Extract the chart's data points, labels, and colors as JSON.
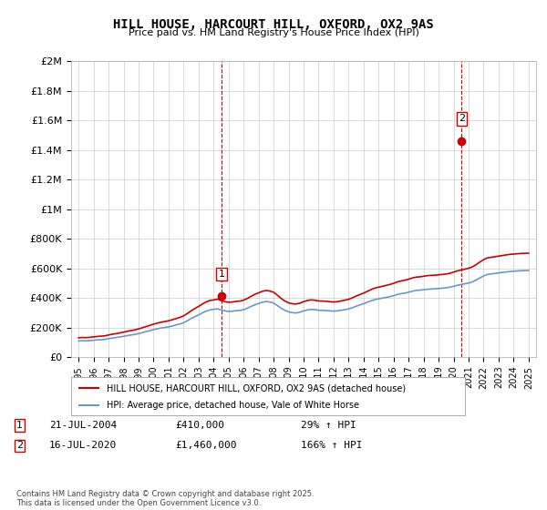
{
  "title": "HILL HOUSE, HARCOURT HILL, OXFORD, OX2 9AS",
  "subtitle": "Price paid vs. HM Land Registry's House Price Index (HPI)",
  "xlim": [
    1994.5,
    2025.5
  ],
  "ylim": [
    0,
    2000000
  ],
  "yticks": [
    0,
    200000,
    400000,
    600000,
    800000,
    1000000,
    1200000,
    1400000,
    1600000,
    1800000,
    2000000
  ],
  "ytick_labels": [
    "£0",
    "£200K",
    "£400K",
    "£600K",
    "£800K",
    "£1M",
    "£1.2M",
    "£1.4M",
    "£1.6M",
    "£1.8M",
    "£2M"
  ],
  "xticks": [
    1995,
    1996,
    1997,
    1998,
    1999,
    2000,
    2001,
    2002,
    2003,
    2004,
    2005,
    2006,
    2007,
    2008,
    2009,
    2010,
    2011,
    2012,
    2013,
    2014,
    2015,
    2016,
    2017,
    2018,
    2019,
    2020,
    2021,
    2022,
    2023,
    2024,
    2025
  ],
  "sale1_x": 2004.54,
  "sale1_y": 410000,
  "sale1_label": "1",
  "sale2_x": 2020.54,
  "sale2_y": 1460000,
  "sale2_label": "2",
  "sale_color": "#cc0000",
  "hpi_color": "#6699cc",
  "vline_color": "#cc0000",
  "background_color": "#ffffff",
  "grid_color": "#cccccc",
  "legend_house": "HILL HOUSE, HARCOURT HILL, OXFORD, OX2 9AS (detached house)",
  "legend_hpi": "HPI: Average price, detached house, Vale of White Horse",
  "annotation1": "1    21-JUL-2004    £410,000    29% ↑ HPI",
  "annotation2": "2    16-JUL-2020    £1,460,000    166% ↑ HPI",
  "footer": "Contains HM Land Registry data © Crown copyright and database right 2025.\nThis data is licensed under the Open Government Licence v3.0.",
  "hpi_data_x": [
    1995.0,
    1995.25,
    1995.5,
    1995.75,
    1996.0,
    1996.25,
    1996.5,
    1996.75,
    1997.0,
    1997.25,
    1997.5,
    1997.75,
    1998.0,
    1998.25,
    1998.5,
    1998.75,
    1999.0,
    1999.25,
    1999.5,
    1999.75,
    2000.0,
    2000.25,
    2000.5,
    2000.75,
    2001.0,
    2001.25,
    2001.5,
    2001.75,
    2002.0,
    2002.25,
    2002.5,
    2002.75,
    2003.0,
    2003.25,
    2003.5,
    2003.75,
    2004.0,
    2004.25,
    2004.5,
    2004.75,
    2005.0,
    2005.25,
    2005.5,
    2005.75,
    2006.0,
    2006.25,
    2006.5,
    2006.75,
    2007.0,
    2007.25,
    2007.5,
    2007.75,
    2008.0,
    2008.25,
    2008.5,
    2008.75,
    2009.0,
    2009.25,
    2009.5,
    2009.75,
    2010.0,
    2010.25,
    2010.5,
    2010.75,
    2011.0,
    2011.25,
    2011.5,
    2011.75,
    2012.0,
    2012.25,
    2012.5,
    2012.75,
    2013.0,
    2013.25,
    2013.5,
    2013.75,
    2014.0,
    2014.25,
    2014.5,
    2014.75,
    2015.0,
    2015.25,
    2015.5,
    2015.75,
    2016.0,
    2016.25,
    2016.5,
    2016.75,
    2017.0,
    2017.25,
    2017.5,
    2017.75,
    2018.0,
    2018.25,
    2018.5,
    2018.75,
    2019.0,
    2019.25,
    2019.5,
    2019.75,
    2020.0,
    2020.25,
    2020.5,
    2020.75,
    2021.0,
    2021.25,
    2021.5,
    2021.75,
    2022.0,
    2022.25,
    2022.5,
    2022.75,
    2023.0,
    2023.25,
    2023.5,
    2023.75,
    2024.0,
    2024.25,
    2024.5,
    2024.75,
    2025.0
  ],
  "hpi_data_y": [
    108000,
    110000,
    109000,
    111000,
    113000,
    116000,
    117000,
    119000,
    124000,
    128000,
    132000,
    136000,
    140000,
    145000,
    149000,
    153000,
    158000,
    165000,
    172000,
    178000,
    185000,
    191000,
    196000,
    200000,
    204000,
    210000,
    217000,
    223000,
    232000,
    245000,
    260000,
    273000,
    285000,
    298000,
    310000,
    318000,
    322000,
    326000,
    318000,
    312000,
    308000,
    310000,
    313000,
    315000,
    320000,
    330000,
    342000,
    353000,
    362000,
    370000,
    375000,
    372000,
    365000,
    348000,
    330000,
    316000,
    305000,
    300000,
    298000,
    303000,
    312000,
    318000,
    322000,
    320000,
    316000,
    315000,
    314000,
    312000,
    310000,
    312000,
    316000,
    320000,
    325000,
    333000,
    343000,
    352000,
    360000,
    370000,
    380000,
    388000,
    393000,
    398000,
    403000,
    408000,
    415000,
    423000,
    428000,
    432000,
    438000,
    445000,
    450000,
    452000,
    455000,
    458000,
    460000,
    461000,
    463000,
    465000,
    468000,
    472000,
    478000,
    485000,
    490000,
    495000,
    500000,
    508000,
    520000,
    535000,
    548000,
    558000,
    562000,
    565000,
    568000,
    572000,
    575000,
    578000,
    580000,
    582000,
    583000,
    584000,
    585000
  ],
  "house_data_x": [
    1995.0,
    1995.25,
    1995.5,
    1995.75,
    1996.0,
    1996.25,
    1996.5,
    1996.75,
    1997.0,
    1997.25,
    1997.5,
    1997.75,
    1998.0,
    1998.25,
    1998.5,
    1998.75,
    1999.0,
    1999.25,
    1999.5,
    1999.75,
    2000.0,
    2000.25,
    2000.5,
    2000.75,
    2001.0,
    2001.25,
    2001.5,
    2001.75,
    2002.0,
    2002.25,
    2002.5,
    2002.75,
    2003.0,
    2003.25,
    2003.5,
    2003.75,
    2004.0,
    2004.25,
    2004.5,
    2004.75,
    2005.0,
    2005.25,
    2005.5,
    2005.75,
    2006.0,
    2006.25,
    2006.5,
    2006.75,
    2007.0,
    2007.25,
    2007.5,
    2007.75,
    2008.0,
    2008.25,
    2008.5,
    2008.75,
    2009.0,
    2009.25,
    2009.5,
    2009.75,
    2010.0,
    2010.25,
    2010.5,
    2010.75,
    2011.0,
    2011.25,
    2011.5,
    2011.75,
    2012.0,
    2012.25,
    2012.5,
    2012.75,
    2013.0,
    2013.25,
    2013.5,
    2013.75,
    2014.0,
    2014.25,
    2014.5,
    2014.75,
    2015.0,
    2015.25,
    2015.5,
    2015.75,
    2016.0,
    2016.25,
    2016.5,
    2016.75,
    2017.0,
    2017.25,
    2017.5,
    2017.75,
    2018.0,
    2018.25,
    2018.5,
    2018.75,
    2019.0,
    2019.25,
    2019.5,
    2019.75,
    2020.0,
    2020.25,
    2020.5,
    2020.75,
    2021.0,
    2021.25,
    2021.5,
    2021.75,
    2022.0,
    2022.25,
    2022.5,
    2022.75,
    2023.0,
    2023.25,
    2023.5,
    2023.75,
    2024.0,
    2024.25,
    2024.5,
    2024.75,
    2025.0
  ],
  "house_data_y": [
    130000,
    132000,
    131000,
    133000,
    136000,
    139000,
    141000,
    143000,
    149000,
    154000,
    158000,
    163000,
    168000,
    174000,
    179000,
    183000,
    190000,
    198000,
    206000,
    214000,
    222000,
    229000,
    235000,
    240000,
    245000,
    252000,
    260000,
    268000,
    278000,
    294000,
    312000,
    328000,
    342000,
    358000,
    372000,
    382000,
    386000,
    391000,
    382000,
    374000,
    370000,
    372000,
    376000,
    378000,
    384000,
    396000,
    410000,
    424000,
    434000,
    444000,
    450000,
    446000,
    438000,
    418000,
    396000,
    379000,
    366000,
    360000,
    358000,
    364000,
    374000,
    382000,
    386000,
    384000,
    379000,
    378000,
    377000,
    374000,
    372000,
    374000,
    379000,
    384000,
    390000,
    400000,
    412000,
    422000,
    432000,
    444000,
    456000,
    466000,
    472000,
    478000,
    484000,
    490000,
    498000,
    508000,
    514000,
    519000,
    526000,
    534000,
    540000,
    542000,
    546000,
    550000,
    552000,
    553000,
    556000,
    558000,
    561000,
    566000,
    574000,
    582000,
    588000,
    594000,
    600000,
    609000,
    624000,
    642000,
    658000,
    670000,
    674000,
    678000,
    682000,
    686000,
    690000,
    694000,
    696000,
    698000,
    700000,
    701000,
    702000
  ]
}
